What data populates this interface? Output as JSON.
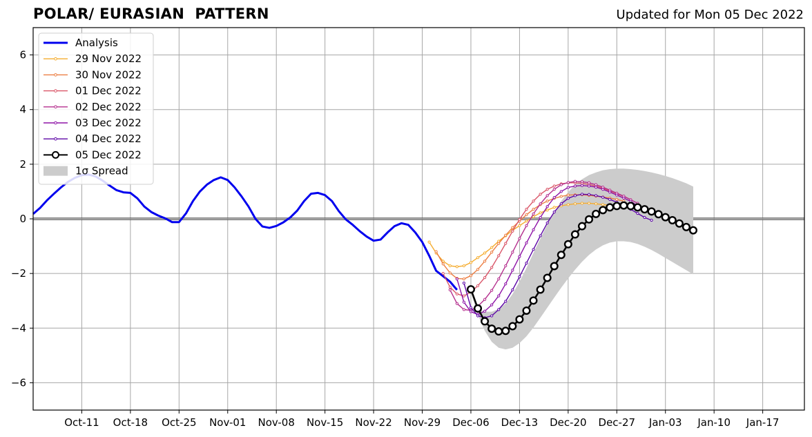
{
  "header": {
    "title": "POLAR/ EURASIAN  PATTERN",
    "updated": "Updated for Mon 05 Dec 2022"
  },
  "chart_data": {
    "type": "line",
    "title": "POLAR/ EURASIAN  PATTERN",
    "subtitle": "Updated for Mon 05 Dec 2022",
    "xlabel": "",
    "ylabel": "",
    "xlim": [
      "2022-10-04",
      "2023-01-23"
    ],
    "ylim": [
      -7,
      7
    ],
    "grid": true,
    "legend_position": "top-left",
    "x_ticks": [
      {
        "date": "2022-10-11",
        "label": "Oct-11"
      },
      {
        "date": "2022-10-18",
        "label": "Oct-18"
      },
      {
        "date": "2022-10-25",
        "label": "Oct-25"
      },
      {
        "date": "2022-11-01",
        "label": "Nov-01"
      },
      {
        "date": "2022-11-08",
        "label": "Nov-08"
      },
      {
        "date": "2022-11-15",
        "label": "Nov-15"
      },
      {
        "date": "2022-11-22",
        "label": "Nov-22"
      },
      {
        "date": "2022-11-29",
        "label": "Nov-29"
      },
      {
        "date": "2022-12-06",
        "label": "Dec-06"
      },
      {
        "date": "2022-12-13",
        "label": "Dec-13"
      },
      {
        "date": "2022-12-20",
        "label": "Dec-20"
      },
      {
        "date": "2022-12-27",
        "label": "Dec-27"
      },
      {
        "date": "2023-01-03",
        "label": "Jan-03"
      },
      {
        "date": "2023-01-10",
        "label": "Jan-10"
      },
      {
        "date": "2023-01-17",
        "label": "Jan-17"
      }
    ],
    "y_ticks": [
      {
        "value": 6,
        "label": "6"
      },
      {
        "value": 4,
        "label": "4"
      },
      {
        "value": 2,
        "label": "2"
      },
      {
        "value": 0,
        "label": "0"
      },
      {
        "value": -2,
        "label": "−2"
      },
      {
        "value": -4,
        "label": "−4"
      },
      {
        "value": -6,
        "label": "−6"
      }
    ],
    "zero_line": 0,
    "analysis": {
      "name": "Analysis",
      "color": "#0000ee",
      "start_date": "2022-10-04",
      "values": [
        0.18,
        0.4,
        0.68,
        0.92,
        1.15,
        1.35,
        1.5,
        1.6,
        1.62,
        1.55,
        1.4,
        1.22,
        1.05,
        0.97,
        0.95,
        0.75,
        0.45,
        0.25,
        0.12,
        0.02,
        -0.12,
        -0.12,
        0.2,
        0.65,
        1.0,
        1.25,
        1.42,
        1.52,
        1.42,
        1.15,
        0.82,
        0.45,
        0.0,
        -0.28,
        -0.33,
        -0.26,
        -0.13,
        0.05,
        0.3,
        0.65,
        0.92,
        0.95,
        0.87,
        0.65,
        0.28,
        -0.02,
        -0.22,
        -0.45,
        -0.65,
        -0.8,
        -0.76,
        -0.5,
        -0.27,
        -0.16,
        -0.22,
        -0.5,
        -0.85,
        -1.35,
        -1.9,
        -2.1,
        -2.3,
        -2.6
      ]
    },
    "forecasts": [
      {
        "name": "29 Nov 2022",
        "color": "#f5ac2e",
        "start_date": "2022-11-30",
        "values": [
          -0.85,
          -1.25,
          -1.55,
          -1.72,
          -1.75,
          -1.72,
          -1.6,
          -1.42,
          -1.25,
          -1.05,
          -0.82,
          -0.62,
          -0.42,
          -0.25,
          -0.08,
          0.08,
          0.22,
          0.32,
          0.42,
          0.48,
          0.52,
          0.55,
          0.57,
          0.57,
          0.55,
          0.52,
          0.5,
          0.47
        ]
      },
      {
        "name": "30 Nov 2022",
        "color": "#ec7e43",
        "start_date": "2022-12-01",
        "values": [
          -1.2,
          -1.65,
          -1.98,
          -2.18,
          -2.2,
          -2.08,
          -1.85,
          -1.55,
          -1.22,
          -0.9,
          -0.6,
          -0.32,
          -0.08,
          0.15,
          0.35,
          0.52,
          0.65,
          0.75,
          0.82,
          0.87,
          0.88,
          0.88,
          0.86,
          0.83,
          0.8,
          0.76,
          0.71,
          0.65
        ]
      },
      {
        "name": "01 Dec 2022",
        "color": "#d95467",
        "start_date": "2022-12-02",
        "values": [
          -2.0,
          -2.5,
          -2.75,
          -2.82,
          -2.68,
          -2.45,
          -2.15,
          -1.78,
          -1.35,
          -0.9,
          -0.45,
          -0.02,
          0.35,
          0.65,
          0.9,
          1.08,
          1.2,
          1.28,
          1.32,
          1.32,
          1.3,
          1.26,
          1.2,
          1.12,
          1.02,
          0.92,
          0.82,
          0.7
        ]
      },
      {
        "name": "02 Dec 2022",
        "color": "#b42e8d",
        "start_date": "2022-12-03",
        "values": [
          -2.6,
          -3.1,
          -3.32,
          -3.35,
          -3.2,
          -2.95,
          -2.62,
          -2.2,
          -1.72,
          -1.22,
          -0.72,
          -0.25,
          0.18,
          0.55,
          0.85,
          1.08,
          1.25,
          1.33,
          1.37,
          1.36,
          1.32,
          1.25,
          1.16,
          1.05,
          0.94,
          0.83,
          0.7,
          0.57
        ]
      },
      {
        "name": "03 Dec 2022",
        "color": "#8d12a6",
        "start_date": "2022-12-04",
        "values": [
          -2.2,
          -3.05,
          -3.4,
          -3.5,
          -3.38,
          -3.15,
          -2.82,
          -2.38,
          -1.88,
          -1.38,
          -0.88,
          -0.4,
          0.05,
          0.45,
          0.78,
          1.0,
          1.15,
          1.2,
          1.22,
          1.2,
          1.16,
          1.08,
          0.98,
          0.87,
          0.76,
          0.64,
          0.48,
          0.3
        ]
      },
      {
        "name": "04 Dec 2022",
        "color": "#5c05a6",
        "start_date": "2022-12-05",
        "values": [
          -2.35,
          -3.25,
          -3.55,
          -3.62,
          -3.55,
          -3.32,
          -3.02,
          -2.6,
          -2.12,
          -1.62,
          -1.12,
          -0.62,
          -0.15,
          0.25,
          0.55,
          0.75,
          0.85,
          0.9,
          0.89,
          0.85,
          0.79,
          0.71,
          0.61,
          0.49,
          0.35,
          0.2,
          0.05,
          -0.05
        ]
      },
      {
        "name": "05 Dec 2022",
        "color": "#000000",
        "start_date": "2022-12-06",
        "values": [
          -2.58,
          -3.28,
          -3.75,
          -4.02,
          -4.12,
          -4.1,
          -3.93,
          -3.68,
          -3.36,
          -2.99,
          -2.59,
          -2.16,
          -1.73,
          -1.32,
          -0.93,
          -0.57,
          -0.27,
          -0.02,
          0.18,
          0.32,
          0.42,
          0.47,
          0.49,
          0.47,
          0.42,
          0.35,
          0.27,
          0.17,
          0.06,
          -0.05,
          -0.17,
          -0.3,
          -0.42
        ]
      }
    ],
    "spread": {
      "name": "1σ Spread",
      "color": "#cccccc",
      "start_date": "2022-12-06",
      "upper": [
        -2.5,
        -3.3,
        -3.4,
        -3.4,
        -3.3,
        -3.1,
        -2.75,
        -2.3,
        -1.8,
        -1.25,
        -0.72,
        -0.2,
        0.25,
        0.65,
        0.98,
        1.25,
        1.45,
        1.6,
        1.7,
        1.78,
        1.82,
        1.84,
        1.84,
        1.82,
        1.79,
        1.75,
        1.7,
        1.64,
        1.57,
        1.49,
        1.4,
        1.3,
        1.18
      ],
      "lower": [
        -2.7,
        -3.5,
        -4.1,
        -4.5,
        -4.72,
        -4.78,
        -4.72,
        -4.55,
        -4.3,
        -3.98,
        -3.62,
        -3.25,
        -2.88,
        -2.52,
        -2.18,
        -1.86,
        -1.57,
        -1.32,
        -1.12,
        -0.97,
        -0.87,
        -0.82,
        -0.82,
        -0.85,
        -0.92,
        -1.02,
        -1.14,
        -1.28,
        -1.43,
        -1.58,
        -1.73,
        -1.88,
        -2.03
      ]
    }
  }
}
